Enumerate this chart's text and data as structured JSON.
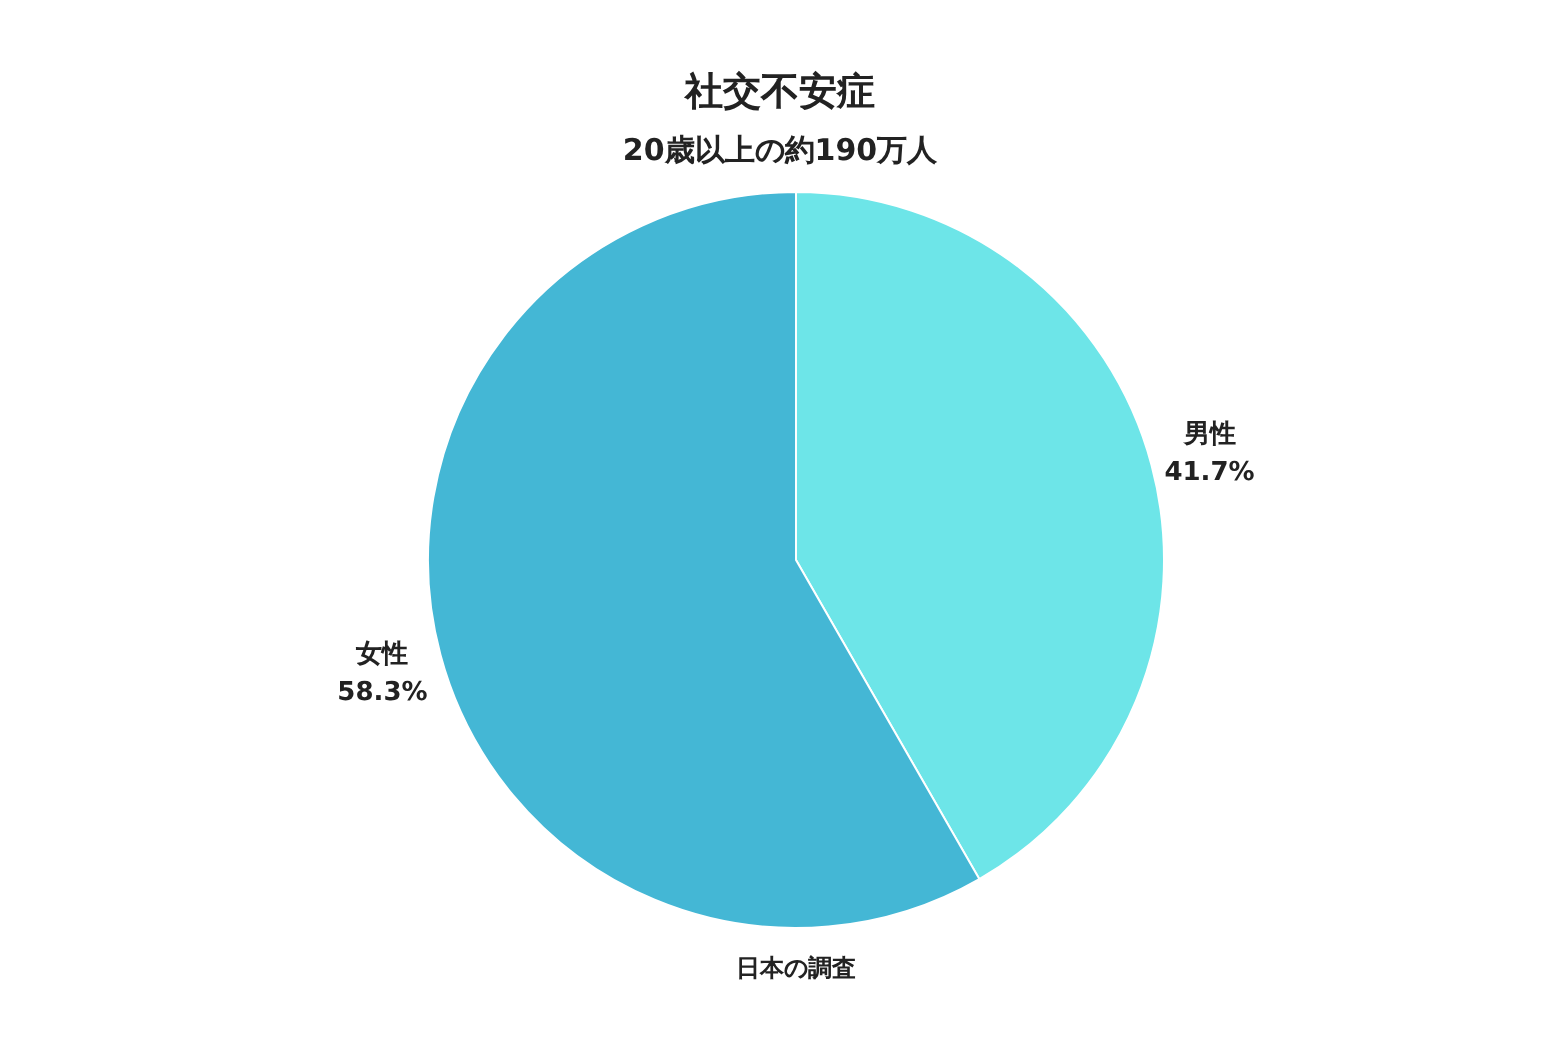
{
  "chart_data": {
    "type": "pie",
    "title": "社交不安症",
    "subtitle": "20歳以上の約190万人",
    "categories": [
      "男性",
      "女性"
    ],
    "values": [
      41.7,
      58.3
    ],
    "value_labels": [
      "41.7%",
      "58.3%"
    ],
    "colors": [
      "#6de5e8",
      "#44b7d5"
    ],
    "annotations": [
      "日本の調査"
    ],
    "legend": false
  }
}
